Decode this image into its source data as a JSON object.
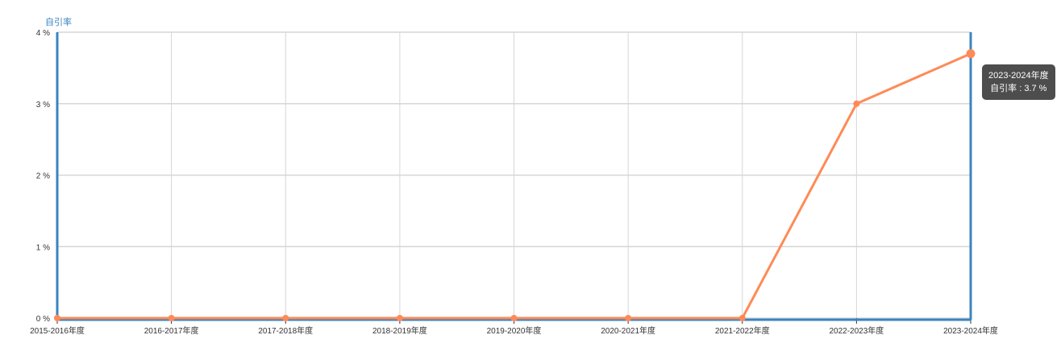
{
  "chart_data": {
    "type": "line",
    "ylabel": "自引率",
    "categories": [
      "2015-2016年度",
      "2016-2017年度",
      "2017-2018年度",
      "2018-2019年度",
      "2019-2020年度",
      "2020-2021年度",
      "2021-2022年度",
      "2022-2023年度",
      "2023-2024年度"
    ],
    "series": [
      {
        "name": "自引率",
        "values": [
          0,
          0,
          0,
          0,
          0,
          0,
          0,
          3.0,
          3.7
        ]
      }
    ],
    "yticks": [
      "0 %",
      "1 %",
      "2 %",
      "3 %",
      "4 %"
    ],
    "ylim": [
      0,
      4
    ],
    "grid": true,
    "colors": {
      "line": "#ff8a56",
      "axis": "#3a84c0",
      "grid": "#d6d6d6",
      "label": "#3a84c0"
    }
  },
  "tooltip": {
    "title": "2023-2024年度",
    "text": "自引率 : 3.7 %"
  }
}
